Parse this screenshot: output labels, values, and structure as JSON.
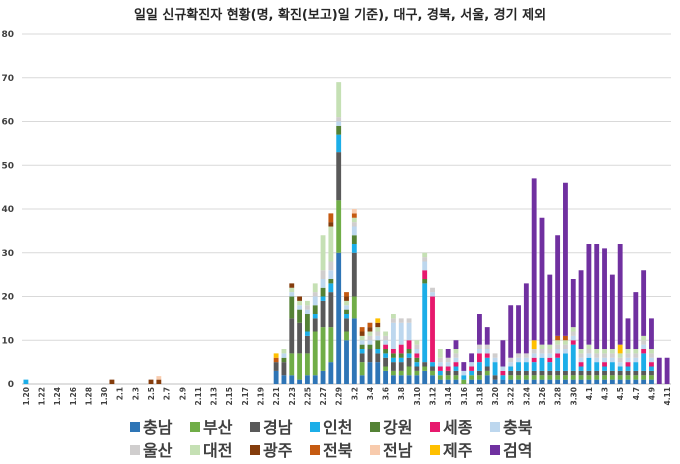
{
  "chart_data": {
    "type": "bar",
    "stacked": true,
    "title": "일일 신규확진자 현황(명, 확진(보고)일 기준), 대구, 경북, 서울, 경기 제외",
    "ylim": [
      0,
      80
    ],
    "yticks": [
      0,
      10,
      20,
      30,
      40,
      50,
      60,
      70,
      80
    ],
    "grid": true,
    "legend_position": "bottom",
    "categories": [
      "1.20",
      "1.21",
      "1.22",
      "1.23",
      "1.24",
      "1.25",
      "1.26",
      "1.27",
      "1.28",
      "1.29",
      "1.30",
      "1.31",
      "2.1",
      "2.2",
      "2.3",
      "2.4",
      "2.5",
      "2.6",
      "2.7",
      "2.8",
      "2.9",
      "2.10",
      "2.11",
      "2.12",
      "2.13",
      "2.14",
      "2.15",
      "2.16",
      "2.17",
      "2.18",
      "2.19",
      "2.20",
      "2.21",
      "2.22",
      "2.23",
      "2.24",
      "2.25",
      "2.26",
      "2.27",
      "2.28",
      "2.29",
      "3.1",
      "3.2",
      "3.3",
      "3.4",
      "3.5",
      "3.6",
      "3.7",
      "3.8",
      "3.9",
      "3.10",
      "3.11",
      "3.12",
      "3.13",
      "3.14",
      "3.15",
      "3.16",
      "3.17",
      "3.18",
      "3.19",
      "3.20",
      "3.21",
      "3.22",
      "3.23",
      "3.24",
      "3.25",
      "3.26",
      "3.27",
      "3.28",
      "3.29",
      "3.30",
      "3.31",
      "4.1",
      "4.2",
      "4.3",
      "4.4",
      "4.5",
      "4.6",
      "4.7",
      "4.8",
      "4.9",
      "4.10",
      "4.11"
    ],
    "tick_labels": [
      "1.20",
      "1.22",
      "1.24",
      "1.26",
      "1.28",
      "1.30",
      "2.1",
      "2.3",
      "2.5",
      "2.7",
      "2.9",
      "2.11",
      "2.13",
      "2.15",
      "2.17",
      "2.19",
      "2.21",
      "2.23",
      "2.25",
      "2.27",
      "2.29",
      "3.2",
      "3.4",
      "3.6",
      "3.8",
      "3.10",
      "3.12",
      "3.14",
      "3.16",
      "3.18",
      "3.20",
      "3.22",
      "3.24",
      "3.26",
      "3.28",
      "3.30",
      "4.1",
      "4.3",
      "4.5",
      "4.7",
      "4.9",
      "4.11"
    ],
    "series": [
      {
        "name": "충남",
        "color": "#2E75B6",
        "values": [
          0,
          0,
          0,
          0,
          0,
          0,
          0,
          0,
          0,
          0,
          0,
          0,
          0,
          0,
          0,
          0,
          0,
          0,
          0,
          0,
          0,
          0,
          0,
          0,
          0,
          0,
          0,
          0,
          0,
          0,
          0,
          0,
          3,
          2,
          2,
          1,
          2,
          2,
          3,
          5,
          30,
          10,
          15,
          2,
          5,
          5,
          3,
          2,
          2,
          2,
          2,
          3,
          2,
          1,
          1,
          1,
          0,
          1,
          1,
          2,
          1,
          1,
          1,
          1,
          1,
          1,
          1,
          1,
          1,
          1,
          1,
          1,
          1,
          1,
          1,
          1,
          1,
          1,
          1,
          1,
          1,
          0,
          0
        ]
      },
      {
        "name": "부산",
        "color": "#70AD47",
        "values": [
          0,
          0,
          0,
          0,
          0,
          0,
          0,
          0,
          0,
          0,
          0,
          0,
          0,
          0,
          0,
          0,
          0,
          0,
          0,
          0,
          0,
          0,
          0,
          0,
          0,
          0,
          0,
          0,
          0,
          0,
          0,
          0,
          0,
          0,
          5,
          6,
          5,
          10,
          10,
          8,
          12,
          2,
          5,
          3,
          0,
          0,
          1,
          1,
          1,
          2,
          1,
          1,
          1,
          1,
          1,
          1,
          1,
          1,
          1,
          1,
          0,
          0,
          1,
          1,
          1,
          1,
          1,
          1,
          1,
          1,
          1,
          1,
          1,
          1,
          1,
          1,
          1,
          1,
          1,
          1,
          1,
          0,
          0
        ]
      },
      {
        "name": "경남",
        "color": "#595959",
        "values": [
          0,
          0,
          0,
          0,
          0,
          0,
          0,
          0,
          0,
          0,
          0,
          0,
          0,
          0,
          0,
          0,
          0,
          0,
          0,
          0,
          0,
          0,
          0,
          0,
          0,
          0,
          0,
          0,
          0,
          0,
          0,
          0,
          2,
          3,
          8,
          7,
          4,
          3,
          6,
          8,
          11,
          3,
          10,
          2,
          3,
          2,
          2,
          2,
          2,
          2,
          1,
          1,
          1,
          0,
          1,
          1,
          0,
          0,
          1,
          1,
          1,
          0,
          1,
          1,
          1,
          1,
          1,
          1,
          1,
          1,
          1,
          1,
          1,
          1,
          1,
          1,
          1,
          1,
          1,
          1,
          1,
          0,
          0
        ]
      },
      {
        "name": "인천",
        "color": "#1CAEE8",
        "values": [
          1,
          0,
          0,
          0,
          0,
          0,
          0,
          0,
          0,
          0,
          0,
          0,
          0,
          0,
          0,
          0,
          0,
          0,
          0,
          0,
          0,
          0,
          0,
          0,
          0,
          0,
          0,
          0,
          0,
          0,
          0,
          0,
          0,
          0,
          0,
          0,
          1,
          1,
          1,
          2,
          4,
          1,
          2,
          1,
          0,
          1,
          1,
          1,
          1,
          1,
          1,
          18,
          1,
          1,
          0,
          1,
          1,
          1,
          2,
          2,
          3,
          1,
          1,
          2,
          2,
          2,
          3,
          2,
          3,
          4,
          6,
          1,
          3,
          2,
          1,
          2,
          1,
          1,
          2,
          4,
          1,
          0,
          0
        ]
      },
      {
        "name": "강원",
        "color": "#548235",
        "values": [
          0,
          0,
          0,
          0,
          0,
          0,
          0,
          0,
          0,
          0,
          0,
          0,
          0,
          0,
          0,
          0,
          0,
          0,
          0,
          0,
          0,
          0,
          0,
          0,
          0,
          0,
          0,
          0,
          0,
          0,
          0,
          0,
          0,
          1,
          5,
          3,
          4,
          2,
          2,
          1,
          2,
          1,
          2,
          1,
          1,
          2,
          1,
          1,
          1,
          1,
          1,
          1,
          0,
          0,
          0,
          0,
          0,
          0,
          0,
          0,
          0,
          0,
          0,
          0,
          0,
          0,
          0,
          0,
          0,
          0,
          0,
          0,
          0,
          0,
          0,
          0,
          0,
          0,
          0,
          0,
          0,
          0,
          0
        ]
      },
      {
        "name": "세종",
        "color": "#E7196D",
        "values": [
          0,
          0,
          0,
          0,
          0,
          0,
          0,
          0,
          0,
          0,
          0,
          0,
          0,
          0,
          0,
          0,
          0,
          0,
          0,
          0,
          0,
          0,
          0,
          0,
          0,
          0,
          0,
          0,
          0,
          0,
          0,
          0,
          0,
          0,
          0,
          0,
          0,
          0,
          0,
          0,
          0,
          0,
          0,
          0,
          0,
          0,
          1,
          1,
          2,
          2,
          1,
          2,
          15,
          1,
          1,
          1,
          0,
          1,
          2,
          1,
          0,
          1,
          0,
          0,
          0,
          1,
          0,
          1,
          1,
          0,
          1,
          1,
          0,
          0,
          1,
          0,
          0,
          1,
          0,
          1,
          1,
          0,
          0
        ]
      },
      {
        "name": "충북",
        "color": "#BDD7EE",
        "values": [
          0,
          0,
          0,
          0,
          0,
          0,
          0,
          0,
          0,
          0,
          0,
          0,
          0,
          0,
          0,
          0,
          0,
          0,
          0,
          0,
          0,
          0,
          0,
          0,
          0,
          0,
          0,
          0,
          0,
          0,
          0,
          0,
          0,
          1,
          1,
          1,
          1,
          2,
          2,
          2,
          1,
          1,
          2,
          1,
          1,
          1,
          1,
          6,
          5,
          4,
          1,
          2,
          1,
          1,
          1,
          1,
          1,
          1,
          1,
          1,
          1,
          1,
          1,
          1,
          1,
          1,
          1,
          1,
          1,
          1,
          1,
          1,
          1,
          1,
          1,
          1,
          1,
          1,
          1,
          1,
          1,
          0,
          0
        ]
      },
      {
        "name": "울산",
        "color": "#D0CECE",
        "values": [
          0,
          0,
          0,
          0,
          0,
          0,
          0,
          0,
          0,
          0,
          0,
          0,
          0,
          0,
          0,
          0,
          0,
          0,
          0,
          0,
          0,
          0,
          0,
          0,
          0,
          0,
          0,
          0,
          0,
          0,
          0,
          0,
          0,
          0,
          0,
          0,
          1,
          1,
          2,
          2,
          1,
          0,
          1,
          0,
          1,
          1,
          1,
          1,
          1,
          1,
          1,
          1,
          1,
          1,
          1,
          1,
          0,
          0,
          1,
          1,
          1,
          0,
          1,
          1,
          1,
          1,
          1,
          1,
          1,
          1,
          1,
          1,
          1,
          1,
          1,
          1,
          1,
          1,
          1,
          1,
          1,
          0,
          0
        ]
      },
      {
        "name": "대전",
        "color": "#C5E0B4",
        "values": [
          0,
          0,
          0,
          0,
          0,
          0,
          0,
          0,
          0,
          0,
          0,
          0,
          0,
          0,
          0,
          0,
          0,
          0,
          0,
          0,
          0,
          0,
          0,
          0,
          0,
          0,
          0,
          0,
          0,
          0,
          0,
          0,
          0,
          1,
          1,
          1,
          1,
          2,
          8,
          8,
          8,
          1,
          1,
          1,
          1,
          1,
          1,
          1,
          0,
          0,
          1,
          1,
          0,
          2,
          0,
          1,
          0,
          0,
          0,
          0,
          0,
          0,
          0,
          0,
          0,
          0,
          1,
          1,
          1,
          1,
          1,
          1,
          1,
          1,
          1,
          1,
          1,
          1,
          1,
          1,
          1,
          0,
          0
        ]
      },
      {
        "name": "광주",
        "color": "#843C0C",
        "values": [
          0,
          0,
          0,
          0,
          0,
          0,
          0,
          0,
          0,
          0,
          0,
          1,
          0,
          0,
          0,
          0,
          1,
          1,
          0,
          0,
          0,
          0,
          0,
          0,
          0,
          0,
          0,
          0,
          0,
          0,
          0,
          0,
          0,
          0,
          1,
          1,
          0,
          0,
          0,
          1,
          0,
          1,
          0,
          1,
          1,
          1,
          0,
          0,
          0,
          0,
          0,
          0,
          0,
          0,
          0,
          0,
          0,
          0,
          0,
          0,
          0,
          0,
          0,
          0,
          0,
          0,
          0,
          0,
          0,
          0,
          0,
          0,
          0,
          0,
          0,
          0,
          0,
          0,
          0,
          0,
          0,
          0,
          0
        ]
      },
      {
        "name": "전북",
        "color": "#C55A11",
        "values": [
          0,
          0,
          0,
          0,
          0,
          0,
          0,
          0,
          0,
          0,
          0,
          0,
          0,
          0,
          0,
          0,
          0,
          0,
          0,
          0,
          0,
          0,
          0,
          0,
          0,
          0,
          0,
          0,
          0,
          0,
          0,
          0,
          1,
          0,
          0,
          0,
          0,
          0,
          0,
          2,
          0,
          1,
          1,
          1,
          1,
          0,
          0,
          0,
          0,
          0,
          0,
          0,
          0,
          0,
          0,
          0,
          0,
          0,
          0,
          0,
          0,
          0,
          0,
          0,
          0,
          0,
          0,
          0,
          1,
          1,
          0,
          0,
          0,
          0,
          0,
          0,
          0,
          0,
          0,
          0,
          0,
          0,
          0
        ]
      },
      {
        "name": "전남",
        "color": "#F8CBAD",
        "values": [
          0,
          0,
          0,
          0,
          0,
          0,
          0,
          0,
          0,
          0,
          0,
          0,
          0,
          0,
          0,
          0,
          0,
          0.8,
          0,
          0,
          0,
          0,
          0,
          0,
          0,
          0,
          0,
          0,
          0,
          0,
          0,
          0,
          0,
          0,
          0,
          0,
          0,
          0,
          0,
          0,
          0,
          0,
          1,
          0,
          0,
          0,
          0,
          0,
          0,
          0,
          0,
          0,
          0,
          0,
          0,
          0,
          0,
          0,
          0,
          0,
          0,
          0,
          0,
          0,
          0,
          0,
          0,
          0,
          0,
          0,
          0,
          0,
          0,
          0,
          0,
          0,
          0,
          0,
          0,
          0,
          0,
          0,
          0
        ]
      },
      {
        "name": "제주",
        "color": "#FFC000",
        "values": [
          0,
          0,
          0,
          0,
          0,
          0,
          0,
          0,
          0,
          0,
          0,
          0,
          0,
          0,
          0,
          0,
          0,
          0,
          0,
          0,
          0,
          0,
          0,
          0,
          0,
          0,
          0,
          0,
          0,
          0,
          0,
          0,
          1,
          0,
          0,
          0,
          0,
          0,
          0,
          0,
          0,
          0,
          0,
          0,
          0,
          1,
          0,
          0,
          0,
          0,
          0,
          0,
          0,
          0,
          0,
          0,
          0,
          0,
          0,
          0,
          0,
          0,
          0,
          0,
          0,
          2,
          0,
          0,
          0,
          0,
          0,
          0,
          0,
          0,
          0,
          0,
          2,
          0,
          0,
          0,
          0,
          0,
          0
        ]
      },
      {
        "name": "검역",
        "color": "#7030A0",
        "values": [
          0,
          0,
          0,
          0,
          0,
          0,
          0,
          0,
          0,
          0,
          0,
          0,
          0,
          0,
          0,
          0,
          0,
          0,
          0,
          0,
          0,
          0,
          0,
          0,
          0,
          0,
          0,
          0,
          0,
          0,
          0,
          0,
          0,
          0,
          0,
          0,
          0,
          0,
          0,
          0,
          0,
          0,
          0,
          0,
          0,
          0,
          0,
          0,
          0,
          0,
          0,
          0,
          0,
          0,
          2,
          2,
          2,
          2,
          7,
          4,
          0,
          6,
          12,
          11,
          16,
          37,
          29,
          16,
          23,
          35,
          11,
          18,
          23,
          24,
          23,
          17,
          23,
          7,
          13,
          15,
          7,
          6,
          6
        ]
      }
    ]
  }
}
